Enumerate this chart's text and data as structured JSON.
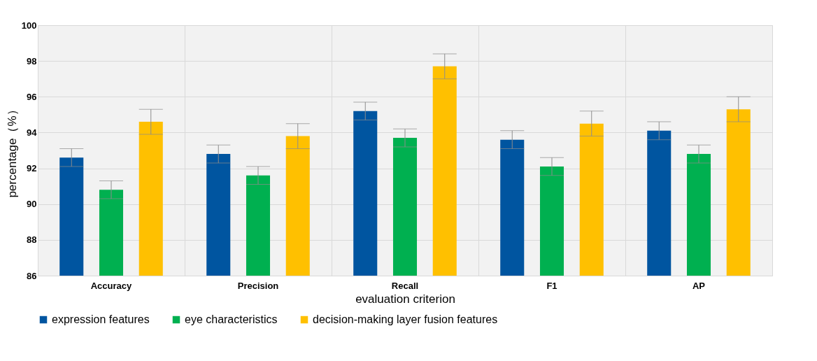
{
  "chart_data": {
    "type": "bar",
    "xlabel": "evaluation criterion",
    "ylabel": "percentage（%）",
    "categories": [
      "Accuracy",
      "Precision",
      "Recall",
      "F1",
      "AP"
    ],
    "series": [
      {
        "name": "expression features",
        "color": "#0055a0",
        "values": [
          92.6,
          92.8,
          95.2,
          93.6,
          94.1
        ],
        "errors": [
          0.5,
          0.5,
          0.5,
          0.5,
          0.5
        ]
      },
      {
        "name": "eye characteristics",
        "color": "#00b050",
        "values": [
          90.8,
          91.6,
          93.7,
          92.1,
          92.8
        ],
        "errors": [
          0.5,
          0.5,
          0.5,
          0.5,
          0.5
        ]
      },
      {
        "name": "decision-making layer fusion features",
        "color": "#ffc000",
        "values": [
          94.6,
          93.8,
          97.7,
          94.5,
          95.3
        ],
        "errors": [
          0.7,
          0.7,
          0.7,
          0.7,
          0.7
        ]
      }
    ],
    "ylim": [
      86,
      100
    ],
    "yticks": [
      86,
      88,
      90,
      92,
      94,
      96,
      98,
      100
    ],
    "grid": true,
    "legend": "bottom"
  }
}
